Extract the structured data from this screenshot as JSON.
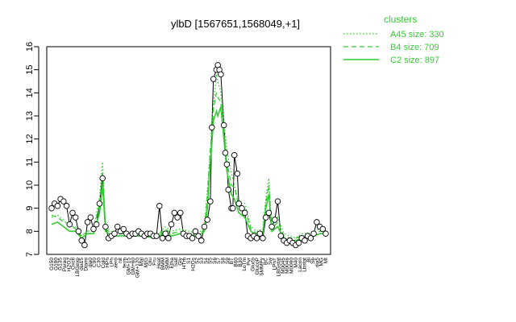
{
  "chart_data": {
    "type": "line",
    "title": "ylbD [1567651,1568049,+1]",
    "ylim": [
      7,
      16
    ],
    "yticks": [
      7,
      8,
      9,
      10,
      11,
      12,
      13,
      14,
      15,
      16
    ],
    "legend": {
      "title": "clusters",
      "placement": "top-right",
      "color": "#33cc33",
      "entries": [
        {
          "label": "A45 size: 330",
          "style": "dotted"
        },
        {
          "label": "B4 size: 709",
          "style": "dashed"
        },
        {
          "label": "C2 size: 897",
          "style": "solid"
        }
      ]
    },
    "condition_labels": [
      "G150",
      "G180",
      "G135",
      "Paraq",
      "H2O2",
      "Oxctl",
      "LBGexp",
      "dia15",
      "Diami",
      "dia0",
      "C90",
      "C30",
      "Cold",
      "HPh",
      "LPh",
      "aero",
      "nit",
      "ferm",
      "GM+15",
      "GM+60",
      "GM+120",
      "Mal",
      "M/G",
      "Glu",
      "Fru",
      "Heat",
      "BMM",
      "SMM",
      "Etha",
      "Salt",
      "Gly",
      "HTm",
      "S1",
      "H2Os",
      "S2",
      "S3",
      "S4",
      "S5",
      "S6",
      "S7",
      "S8",
      "S9",
      "BT",
      "B60",
      "B30",
      "LoTm",
      "Pyr",
      "Gluco",
      "GlucoP",
      "SMMPy",
      "BC",
      "Sw",
      "LPhT",
      "LBGstat",
      "M0045",
      "M0046",
      "M0090",
      "M40",
      "Lacon",
      "Lbstat",
      "Bl",
      "Sb",
      "dia5",
      "MG",
      "Mt"
    ],
    "series": [
      {
        "style": "points",
        "values": [
          9.0,
          9.2,
          9.1,
          9.4,
          9.2,
          9.0,
          8.3,
          8.8,
          8.6,
          8.0,
          7.6,
          7.4,
          8.4,
          8.6,
          8.1,
          8.3,
          8.5,
          10.1,
          7.8,
          7.7,
          7.8,
          7.9,
          8.1,
          8.0,
          8.1,
          7.9,
          7.8,
          8.0,
          7.9,
          8.0,
          7.9,
          7.8,
          8.0,
          7.9,
          7.8,
          7.7,
          7.8,
          7.9,
          7.8,
          8.2,
          9.0,
          8.5,
          8.6,
          8.9,
          8.7,
          8.3,
          7.9,
          7.8,
          7.9,
          7.7,
          7.6,
          7.8,
          7.9,
          8.0,
          9.3,
          12.5,
          14.6,
          15.0,
          15.2,
          14.9,
          13.0,
          11.5,
          10.5,
          9.4,
          9.0
        ],
        "points": [
          [
            0,
            9.0
          ],
          [
            2,
            9.2
          ],
          [
            4,
            9.1
          ],
          [
            6,
            9.4
          ],
          [
            8,
            9.3
          ],
          [
            10,
            9.1
          ],
          [
            12,
            8.3
          ],
          [
            14,
            8.8
          ],
          [
            16,
            8.6
          ],
          [
            18,
            8.0
          ],
          [
            20,
            7.6
          ],
          [
            22,
            7.4
          ],
          [
            24,
            8.4
          ],
          [
            26,
            8.6
          ],
          [
            28,
            8.1
          ],
          [
            30,
            8.3
          ],
          [
            32,
            9.2
          ],
          [
            34,
            10.3
          ],
          [
            36,
            8.2
          ],
          [
            38,
            7.7
          ],
          [
            40,
            7.8
          ],
          [
            42,
            7.9
          ],
          [
            44,
            8.2
          ],
          [
            46,
            8.0
          ],
          [
            48,
            8.1
          ],
          [
            50,
            7.9
          ],
          [
            52,
            7.8
          ],
          [
            54,
            7.9
          ],
          [
            56,
            7.9
          ],
          [
            58,
            8.0
          ],
          [
            60,
            7.9
          ],
          [
            62,
            7.8
          ],
          [
            64,
            7.9
          ],
          [
            66,
            7.9
          ],
          [
            68,
            7.8
          ],
          [
            70,
            7.8
          ],
          [
            72,
            9.1
          ],
          [
            74,
            7.7
          ],
          [
            76,
            7.9
          ],
          [
            78,
            7.7
          ],
          [
            80,
            8.3
          ],
          [
            82,
            8.8
          ],
          [
            84,
            8.6
          ],
          [
            86,
            8.8
          ],
          [
            88,
            7.9
          ],
          [
            90,
            7.8
          ],
          [
            92,
            7.8
          ],
          [
            94,
            7.7
          ],
          [
            96,
            8.0
          ],
          [
            98,
            7.8
          ],
          [
            100,
            7.6
          ],
          [
            102,
            8.2
          ],
          [
            104,
            8.5
          ],
          [
            106,
            9.3
          ],
          [
            107,
            12.5
          ],
          [
            108,
            14.6
          ],
          [
            110,
            15.0
          ],
          [
            111,
            15.2
          ],
          [
            112,
            15.0
          ],
          [
            113,
            14.8
          ],
          [
            115,
            12.6
          ],
          [
            116,
            11.4
          ],
          [
            117,
            10.9
          ],
          [
            118,
            9.8
          ],
          [
            120,
            9.0
          ],
          [
            121,
            9.0
          ],
          [
            122,
            11.3
          ],
          [
            124,
            10.5
          ],
          [
            125,
            9.2
          ],
          [
            127,
            9.0
          ],
          [
            129,
            8.8
          ],
          [
            131,
            7.8
          ],
          [
            133,
            7.7
          ],
          [
            135,
            7.8
          ],
          [
            137,
            7.7
          ],
          [
            139,
            7.9
          ],
          [
            141,
            7.7
          ],
          [
            143,
            8.6
          ],
          [
            145,
            8.8
          ],
          [
            147,
            8.2
          ],
          [
            149,
            8.5
          ],
          [
            151,
            9.3
          ],
          [
            153,
            7.8
          ],
          [
            155,
            7.6
          ],
          [
            157,
            7.5
          ],
          [
            159,
            7.6
          ],
          [
            161,
            7.5
          ],
          [
            163,
            7.4
          ],
          [
            165,
            7.5
          ],
          [
            167,
            7.7
          ],
          [
            169,
            7.6
          ],
          [
            171,
            7.8
          ],
          [
            173,
            7.7
          ],
          [
            175,
            7.9
          ],
          [
            177,
            8.4
          ],
          [
            179,
            8.2
          ],
          [
            181,
            8.1
          ],
          [
            183,
            7.9
          ]
        ]
      },
      {
        "style": "dotted",
        "label": "A45 size: 330",
        "points": [
          [
            0,
            8.6
          ],
          [
            4,
            8.7
          ],
          [
            8,
            8.5
          ],
          [
            12,
            8.2
          ],
          [
            16,
            8.2
          ],
          [
            20,
            7.8
          ],
          [
            24,
            8.0
          ],
          [
            28,
            8.1
          ],
          [
            32,
            9.5
          ],
          [
            34,
            11.0
          ],
          [
            36,
            8.2
          ],
          [
            40,
            8.0
          ],
          [
            50,
            7.9
          ],
          [
            60,
            7.9
          ],
          [
            70,
            7.8
          ],
          [
            76,
            8.2
          ],
          [
            80,
            8.0
          ],
          [
            86,
            8.1
          ],
          [
            92,
            8.0
          ],
          [
            98,
            7.9
          ],
          [
            102,
            8.2
          ],
          [
            104,
            9.8
          ],
          [
            106,
            11.5
          ],
          [
            107,
            12.8
          ],
          [
            108,
            13.5
          ],
          [
            110,
            14.8
          ],
          [
            111,
            14.5
          ],
          [
            113,
            14.0
          ],
          [
            115,
            12.8
          ],
          [
            117,
            11.5
          ],
          [
            120,
            10.5
          ],
          [
            122,
            10.0
          ],
          [
            125,
            9.2
          ],
          [
            129,
            9.2
          ],
          [
            133,
            8.2
          ],
          [
            137,
            8.0
          ],
          [
            141,
            8.1
          ],
          [
            143,
            9.4
          ],
          [
            145,
            10.3
          ],
          [
            147,
            8.2
          ],
          [
            151,
            8.6
          ],
          [
            155,
            7.9
          ],
          [
            159,
            7.8
          ],
          [
            163,
            7.7
          ],
          [
            167,
            7.9
          ],
          [
            171,
            7.9
          ],
          [
            175,
            8.0
          ],
          [
            179,
            8.1
          ],
          [
            183,
            8.0
          ]
        ]
      },
      {
        "style": "dashed",
        "label": "B4 size: 709",
        "points": [
          [
            0,
            8.7
          ],
          [
            4,
            8.6
          ],
          [
            8,
            8.4
          ],
          [
            12,
            8.3
          ],
          [
            16,
            8.1
          ],
          [
            20,
            7.8
          ],
          [
            24,
            8.0
          ],
          [
            28,
            8.0
          ],
          [
            32,
            9.2
          ],
          [
            34,
            10.6
          ],
          [
            36,
            8.1
          ],
          [
            40,
            7.9
          ],
          [
            50,
            7.9
          ],
          [
            60,
            7.8
          ],
          [
            70,
            7.8
          ],
          [
            76,
            8.1
          ],
          [
            80,
            7.9
          ],
          [
            86,
            8.0
          ],
          [
            92,
            7.9
          ],
          [
            98,
            7.8
          ],
          [
            102,
            8.1
          ],
          [
            104,
            9.5
          ],
          [
            106,
            11.6
          ],
          [
            107,
            12.2
          ],
          [
            108,
            13.3
          ],
          [
            110,
            14.0
          ],
          [
            111,
            13.8
          ],
          [
            113,
            13.6
          ],
          [
            115,
            12.4
          ],
          [
            117,
            11.0
          ],
          [
            120,
            10.0
          ],
          [
            122,
            9.9
          ],
          [
            125,
            9.1
          ],
          [
            129,
            9.0
          ],
          [
            133,
            8.1
          ],
          [
            137,
            7.9
          ],
          [
            141,
            8.0
          ],
          [
            143,
            9.2
          ],
          [
            145,
            10.0
          ],
          [
            147,
            8.1
          ],
          [
            151,
            8.4
          ],
          [
            155,
            7.8
          ],
          [
            159,
            7.7
          ],
          [
            163,
            7.7
          ],
          [
            167,
            7.8
          ],
          [
            171,
            7.8
          ],
          [
            175,
            7.9
          ],
          [
            179,
            8.0
          ],
          [
            183,
            8.0
          ]
        ]
      },
      {
        "style": "solid",
        "label": "C2 size: 897",
        "points": [
          [
            0,
            8.3
          ],
          [
            4,
            8.4
          ],
          [
            8,
            8.2
          ],
          [
            12,
            8.0
          ],
          [
            16,
            8.0
          ],
          [
            20,
            7.7
          ],
          [
            24,
            7.9
          ],
          [
            28,
            7.9
          ],
          [
            32,
            8.8
          ],
          [
            34,
            10.0
          ],
          [
            36,
            8.0
          ],
          [
            40,
            7.8
          ],
          [
            50,
            7.8
          ],
          [
            60,
            7.8
          ],
          [
            70,
            7.7
          ],
          [
            76,
            8.0
          ],
          [
            80,
            7.8
          ],
          [
            86,
            7.9
          ],
          [
            92,
            7.8
          ],
          [
            98,
            7.8
          ],
          [
            102,
            8.0
          ],
          [
            104,
            9.0
          ],
          [
            106,
            11.0
          ],
          [
            107,
            11.8
          ],
          [
            108,
            12.8
          ],
          [
            110,
            13.2
          ],
          [
            111,
            13.0
          ],
          [
            113,
            13.4
          ],
          [
            115,
            12.0
          ],
          [
            117,
            10.6
          ],
          [
            120,
            9.6
          ],
          [
            122,
            9.4
          ],
          [
            125,
            8.8
          ],
          [
            129,
            8.6
          ],
          [
            133,
            8.0
          ],
          [
            137,
            7.8
          ],
          [
            141,
            7.9
          ],
          [
            143,
            9.0
          ],
          [
            145,
            9.6
          ],
          [
            147,
            8.0
          ],
          [
            151,
            8.2
          ],
          [
            155,
            7.7
          ],
          [
            159,
            7.6
          ],
          [
            163,
            7.6
          ],
          [
            167,
            7.7
          ],
          [
            171,
            7.7
          ],
          [
            175,
            7.8
          ],
          [
            179,
            7.9
          ],
          [
            183,
            7.9
          ]
        ]
      }
    ],
    "x_range": [
      0,
      183
    ]
  }
}
